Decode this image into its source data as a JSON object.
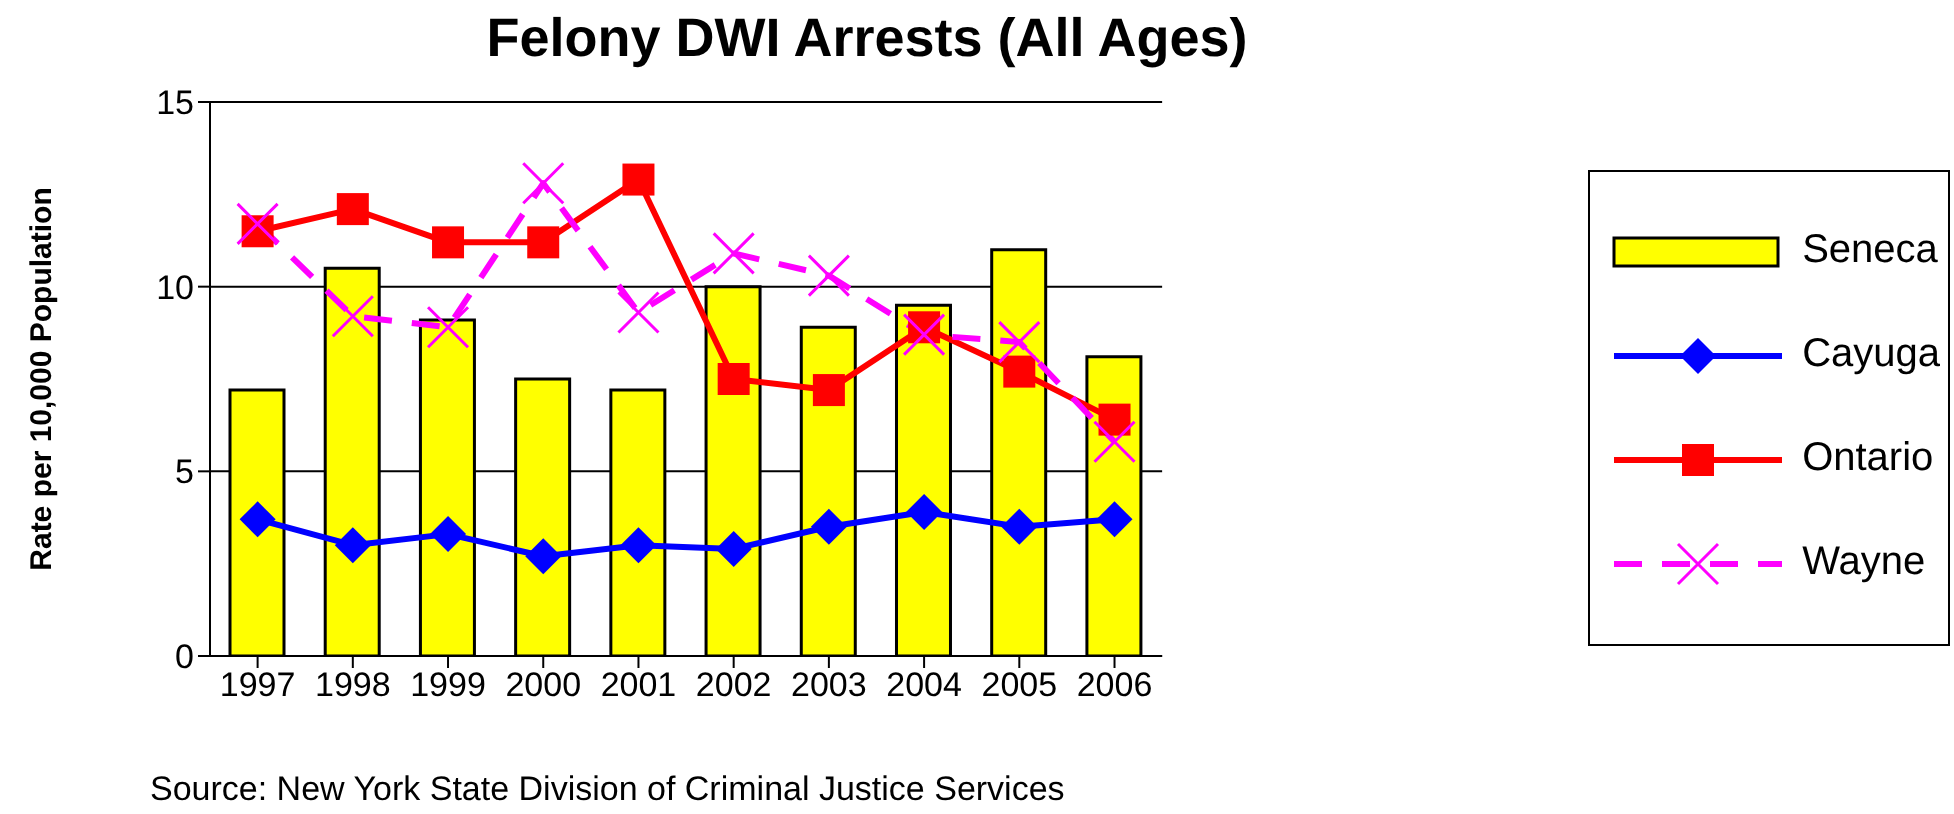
{
  "chart_data": {
    "type": "bar",
    "title": "Felony DWI Arrests (All Ages)",
    "ylabel": "Rate per 10,000 Population",
    "annotations": [
      "Source: New York State Division of Criminal Justice Services"
    ],
    "categories": [
      "1997",
      "1998",
      "1999",
      "2000",
      "2001",
      "2002",
      "2003",
      "2004",
      "2005",
      "2006"
    ],
    "series": [
      {
        "name": "Seneca",
        "color": "#ffff00",
        "values": [
          7.2,
          10.5,
          9.1,
          7.5,
          7.2,
          10.0,
          8.9,
          9.5,
          11.0,
          8.1
        ]
      },
      {
        "name": "Cayuga",
        "type": "line",
        "color": "#0000ff",
        "marker": "diamond",
        "line_style": "solid",
        "values": [
          3.7,
          3.0,
          3.3,
          2.7,
          3.0,
          2.9,
          3.5,
          3.9,
          3.5,
          3.7
        ]
      },
      {
        "name": "Ontario",
        "type": "line",
        "color": "#ff0000",
        "marker": "square",
        "line_style": "solid",
        "values": [
          11.5,
          12.1,
          11.2,
          11.2,
          12.9,
          7.5,
          7.2,
          8.9,
          7.7,
          6.4
        ]
      },
      {
        "name": "Wayne",
        "type": "line",
        "color": "#ff00ff",
        "marker": "cross",
        "line_style": "dashed",
        "values": [
          11.7,
          9.2,
          8.9,
          12.8,
          9.3,
          10.9,
          10.3,
          8.7,
          8.5,
          5.8
        ]
      }
    ],
    "ylim": [
      0,
      15
    ],
    "yticks": [
      0,
      5,
      10,
      15
    ],
    "grid": "y",
    "legend": "right"
  }
}
